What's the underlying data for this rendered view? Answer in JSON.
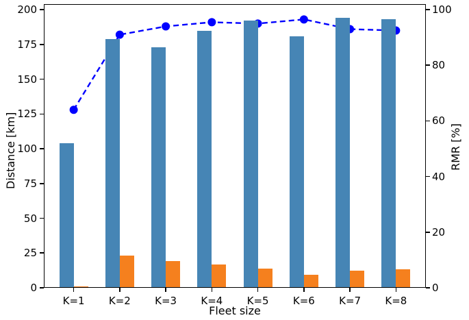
{
  "figure": {
    "background": "#ffffff",
    "axis_color": "#000000"
  },
  "chart_data": {
    "type": "bar",
    "subtype": "grouped-bars-with-line-overlay",
    "categories": [
      "K=1",
      "K=2",
      "K=3",
      "K=4",
      "K=5",
      "K=6",
      "K=7",
      "K=8"
    ],
    "series": [
      {
        "name": "Distance bars",
        "type": "bar",
        "axis": "left",
        "color": "#4685b5",
        "values": [
          104,
          179,
          173,
          185,
          192,
          181,
          194,
          193
        ]
      },
      {
        "name": "Orange bars (unlabeled)",
        "type": "bar",
        "axis": "left",
        "color": "#f5801e",
        "values": [
          1,
          23,
          19,
          17,
          14,
          9.5,
          12.5,
          13.5
        ]
      },
      {
        "name": "RMR line",
        "type": "line",
        "axis": "right",
        "color": "#0000ff",
        "style": "dashed",
        "marker": "circle",
        "values": [
          64,
          91,
          94,
          95.5,
          95,
          96.5,
          93,
          92.5
        ]
      }
    ],
    "title": "",
    "xlabel": "Fleet size",
    "ylabel_left": "Distance [km]",
    "ylabel_right": "RMR [%]",
    "yticks_left": [
      0,
      25,
      50,
      75,
      100,
      125,
      150,
      175,
      200
    ],
    "yticks_right": [
      0,
      20,
      40,
      60,
      80,
      100
    ],
    "ylim_left": [
      0,
      204
    ],
    "ylim_right": [
      0,
      102
    ],
    "grid": false,
    "legend": "none"
  }
}
